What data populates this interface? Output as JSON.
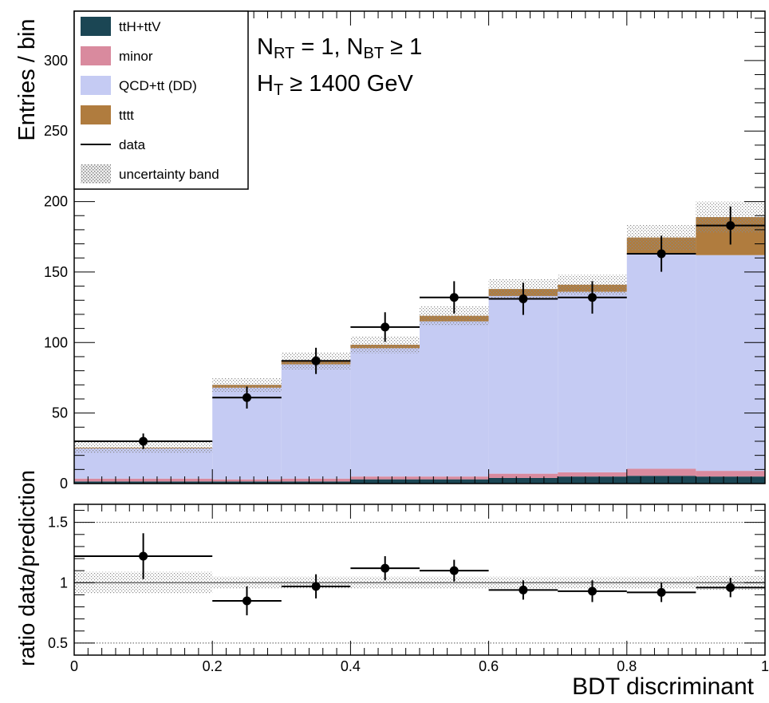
{
  "chart_data": [
    {
      "type": "bar",
      "stacked": true,
      "ylabel": "Entries / bin",
      "ylim": [
        0,
        335
      ],
      "yticks": [
        0,
        50,
        100,
        150,
        200,
        250,
        300
      ],
      "xlim": [
        0,
        1
      ],
      "xticks": [
        "0",
        "0.2",
        "0.4",
        "0.6",
        "0.8",
        "1"
      ],
      "bins": [
        [
          0,
          0.2
        ],
        [
          0.2,
          0.3
        ],
        [
          0.3,
          0.4
        ],
        [
          0.4,
          0.5
        ],
        [
          0.5,
          0.6
        ],
        [
          0.6,
          0.7
        ],
        [
          0.7,
          0.8
        ],
        [
          0.8,
          0.9
        ],
        [
          0.9,
          1.0
        ]
      ],
      "annotation_lines": [
        {
          "parts": [
            {
              "t": "N",
              "s": false
            },
            {
              "t": "RT",
              "s": true
            },
            {
              "t": " = 1, N",
              "s": false
            },
            {
              "t": "BT",
              "s": true
            },
            {
              "t": " ≥ 1",
              "s": false
            }
          ]
        },
        {
          "parts": [
            {
              "t": "H",
              "s": false
            },
            {
              "t": "T",
              "s": true
            },
            {
              "t": " ≥ 1400 GeV",
              "s": false
            }
          ]
        }
      ],
      "legend_position": "top-left",
      "legend": [
        {
          "label": "ttH+ttV",
          "swatch": "fill",
          "color": "#1b4654"
        },
        {
          "label": "minor",
          "swatch": "fill",
          "color": "#d98a9e"
        },
        {
          "label": "QCD+tt (DD)",
          "swatch": "fill",
          "color": "#c5cbf3"
        },
        {
          "label": "tttt",
          "swatch": "fill",
          "color": "#b07c3e"
        },
        {
          "label": "data",
          "swatch": "line",
          "color": "#000000"
        },
        {
          "label": "uncertainty band",
          "swatch": "hatch",
          "color": "#aaaaaa"
        }
      ],
      "series": [
        {
          "name": "ttH+ttV",
          "color": "#1b4654",
          "values": [
            1.5,
            1.5,
            1.5,
            3,
            3,
            4,
            5,
            5.5,
            5
          ]
        },
        {
          "name": "minor",
          "color": "#d98a9e",
          "values": [
            2,
            1.5,
            2,
            2,
            2,
            3,
            3,
            5,
            4
          ]
        },
        {
          "name": "QCD+tt (DD)",
          "color": "#c5cbf3",
          "values": [
            21.5,
            65,
            81,
            91,
            110,
            126,
            128,
            152,
            153
          ]
        },
        {
          "name": "tttt",
          "color": "#b07c3e",
          "values": [
            0.5,
            2,
            2.5,
            2.5,
            4,
            5,
            5,
            12,
            27
          ]
        }
      ],
      "data_points": {
        "name": "data",
        "x": [
          0.1,
          0.25,
          0.35,
          0.45,
          0.55,
          0.65,
          0.75,
          0.85,
          0.95
        ],
        "y": [
          30,
          61,
          87,
          111,
          132,
          131,
          132,
          163,
          183
        ],
        "yerr": [
          5.5,
          7.8,
          9.3,
          10.5,
          11.5,
          11.4,
          11.5,
          12.8,
          13.5
        ]
      },
      "uncertainty": [
        4,
        5,
        6,
        6,
        7,
        7,
        7,
        9,
        11
      ]
    },
    {
      "type": "scatter",
      "ylabel": "ratio data/prediction",
      "xlabel": "BDT discriminant",
      "ylim": [
        0.4,
        1.65
      ],
      "yticks": [
        "0.5",
        "1",
        "1.5"
      ],
      "reference_lines": [
        0.5,
        1,
        1.5
      ],
      "xlim": [
        0,
        1
      ],
      "xticks": [
        "0",
        "0.2",
        "0.4",
        "0.6",
        "0.8",
        "1"
      ],
      "points": [
        {
          "x": 0.1,
          "xerr": 0.1,
          "y": 1.22,
          "yerr": 0.19
        },
        {
          "x": 0.25,
          "xerr": 0.05,
          "y": 0.85,
          "yerr": 0.12
        },
        {
          "x": 0.35,
          "xerr": 0.05,
          "y": 0.97,
          "yerr": 0.1
        },
        {
          "x": 0.45,
          "xerr": 0.05,
          "y": 1.12,
          "yerr": 0.1
        },
        {
          "x": 0.55,
          "xerr": 0.05,
          "y": 1.1,
          "yerr": 0.09
        },
        {
          "x": 0.65,
          "xerr": 0.05,
          "y": 0.94,
          "yerr": 0.08
        },
        {
          "x": 0.75,
          "xerr": 0.05,
          "y": 0.93,
          "yerr": 0.09
        },
        {
          "x": 0.85,
          "xerr": 0.05,
          "y": 0.92,
          "yerr": 0.08
        },
        {
          "x": 0.95,
          "xerr": 0.05,
          "y": 0.96,
          "yerr": 0.08
        }
      ],
      "uncertainty": [
        0.09,
        0.05,
        0.05,
        0.05,
        0.05,
        0.05,
        0.05,
        0.05,
        0.06
      ]
    }
  ]
}
